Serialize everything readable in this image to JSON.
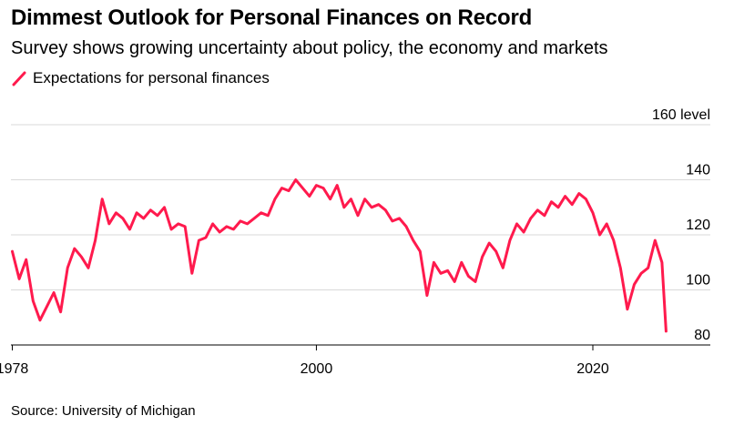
{
  "title": "Dimmest Outlook for Personal Finances on Record",
  "subtitle": "Survey shows growing uncertainty about policy, the economy and markets",
  "legend": {
    "label": "Expectations for personal finances",
    "color": "#ff1a4d"
  },
  "source": "Source: University of Michigan",
  "chart_data": {
    "type": "line",
    "title": "Dimmest Outlook for Personal Finances on Record",
    "xlabel": "",
    "ylabel": "level",
    "xlim": [
      1977.9,
      2028.5
    ],
    "ylim": [
      80,
      160
    ],
    "grid": true,
    "y_ticks": [
      80,
      100,
      120,
      140,
      160
    ],
    "y_tick_labels": [
      "80",
      "100",
      "120",
      "140",
      "160 level"
    ],
    "x_ticks": [
      1978,
      2000,
      2020
    ],
    "x_tick_labels": [
      "1978",
      "2000",
      "2020"
    ],
    "series": [
      {
        "name": "Expectations for personal finances",
        "color": "#ff1a4d",
        "x": [
          1978.0,
          1978.5,
          1979.0,
          1979.5,
          1980.0,
          1980.5,
          1981.0,
          1981.5,
          1982.0,
          1982.5,
          1983.0,
          1983.5,
          1984.0,
          1984.5,
          1985.0,
          1985.5,
          1986.0,
          1986.5,
          1987.0,
          1987.5,
          1988.0,
          1988.5,
          1989.0,
          1989.5,
          1990.0,
          1990.5,
          1991.0,
          1991.5,
          1992.0,
          1992.5,
          1993.0,
          1993.5,
          1994.0,
          1994.5,
          1995.0,
          1995.5,
          1996.0,
          1996.5,
          1997.0,
          1997.5,
          1998.0,
          1998.5,
          1999.0,
          1999.5,
          2000.0,
          2000.5,
          2001.0,
          2001.5,
          2002.0,
          2002.5,
          2003.0,
          2003.5,
          2004.0,
          2004.5,
          2005.0,
          2005.5,
          2006.0,
          2006.5,
          2007.0,
          2007.5,
          2008.0,
          2008.5,
          2009.0,
          2009.5,
          2010.0,
          2010.5,
          2011.0,
          2011.5,
          2012.0,
          2012.5,
          2013.0,
          2013.5,
          2014.0,
          2014.5,
          2015.0,
          2015.5,
          2016.0,
          2016.5,
          2017.0,
          2017.5,
          2018.0,
          2018.5,
          2019.0,
          2019.5,
          2020.0,
          2020.5,
          2021.0,
          2021.5,
          2022.0,
          2022.5,
          2023.0,
          2023.5,
          2024.0,
          2024.5,
          2025.0,
          2025.3
        ],
        "values": [
          114,
          104,
          111,
          96,
          89,
          94,
          99,
          92,
          108,
          115,
          112,
          108,
          118,
          133,
          124,
          128,
          126,
          122,
          128,
          126,
          129,
          127,
          130,
          122,
          124,
          123,
          106,
          118,
          119,
          124,
          121,
          123,
          122,
          125,
          124,
          126,
          128,
          127,
          133,
          137,
          136,
          140,
          137,
          134,
          138,
          137,
          133,
          138,
          130,
          133,
          127,
          133,
          130,
          131,
          129,
          125,
          126,
          123,
          118,
          114,
          98,
          110,
          106,
          107,
          103,
          110,
          105,
          103,
          112,
          117,
          114,
          108,
          118,
          124,
          121,
          126,
          129,
          127,
          132,
          130,
          134,
          131,
          135,
          133,
          128,
          120,
          124,
          118,
          108,
          93,
          102,
          106,
          108,
          118,
          110,
          85
        ]
      }
    ]
  }
}
